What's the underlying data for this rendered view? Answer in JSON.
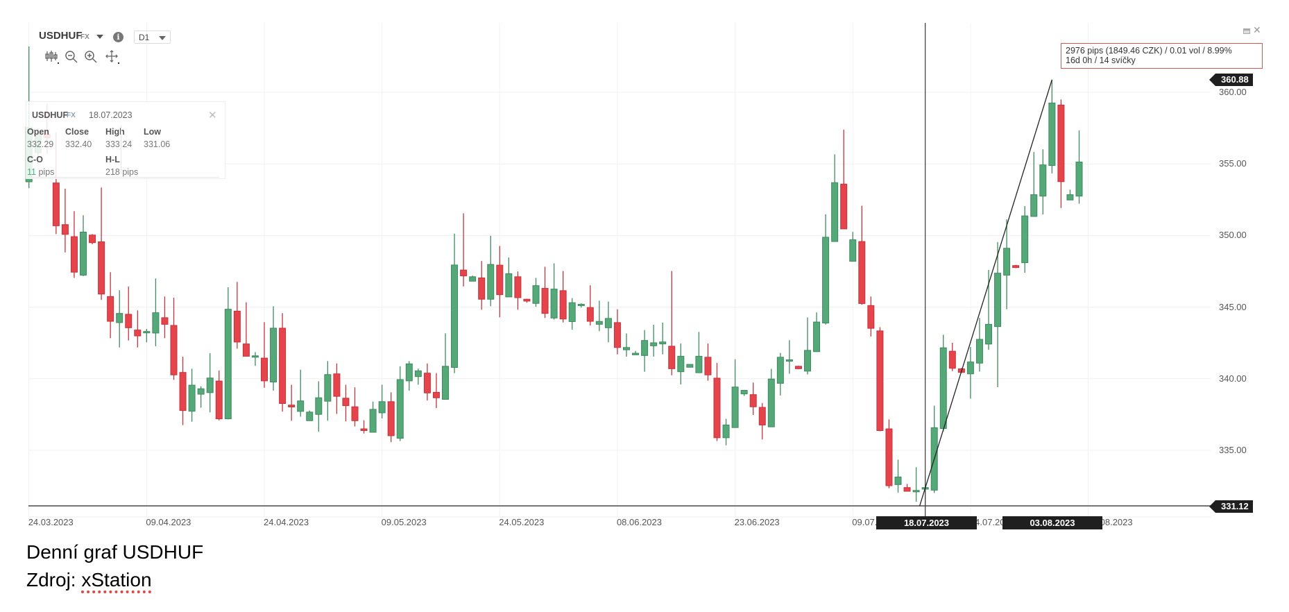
{
  "header": {
    "symbol": "USDHUF",
    "symbol_type": "FX",
    "timeframe": "D1",
    "tools": [
      "candlestick-chart-type-icon",
      "zoom-out-icon",
      "zoom-in-icon",
      "move-icon"
    ]
  },
  "ohlc_panel": {
    "symbol": "USDHUF",
    "symbol_type": "FX",
    "date": "18.07.2023",
    "open_label": "Open",
    "open": "332.29",
    "close_label": "Close",
    "close": "332.40",
    "high_label": "High",
    "high": "333.24",
    "low_label": "Low",
    "low": "331.06",
    "co_label": "C-O",
    "co_value": "11",
    "co_unit": "pips",
    "hl_label": "H-L",
    "hl": "218 pips"
  },
  "measurement": {
    "line1": "2976 pips (1849.46 CZK) / 0.01 vol / 8.99%",
    "line2": "16d 0h / 14 svíčky"
  },
  "price_tags": {
    "high": "360.88",
    "low": "331.12"
  },
  "crosshair_date_labels": {
    "start": "18.07.2023",
    "end": "03.08.2023"
  },
  "caption": {
    "line1": "Denní graf USDHUF",
    "line2_prefix": "Zdroj: ",
    "line2_source": "xStation"
  },
  "colors": {
    "up": "#55a878",
    "up_border": "#3f8a5f",
    "down": "#e5444c",
    "down_border": "#c4343b",
    "measure_border": "#d9534f"
  },
  "chart_data": {
    "type": "candlestick",
    "title": "",
    "ylim": [
      329.5,
      365
    ],
    "grid": true,
    "y_ticks": [
      "360.00",
      "355.00",
      "350.00",
      "345.00",
      "340.00",
      "335.00"
    ],
    "x_ticks": [
      {
        "label": "24.03.2023",
        "bar": 0
      },
      {
        "label": "09.04.2023",
        "bar": 13
      },
      {
        "label": "24.04.2023",
        "bar": 26
      },
      {
        "label": "09.05.2023",
        "bar": 39
      },
      {
        "label": "24.05.2023",
        "bar": 52
      },
      {
        "label": "08.06.2023",
        "bar": 65
      },
      {
        "label": "23.06.2023",
        "bar": 78
      },
      {
        "label": "09.07.2023",
        "bar": 91
      },
      {
        "label": "24.07.2023",
        "bar": 104
      },
      {
        "label": "08.08.2023",
        "bar": 117
      }
    ],
    "ohlc_fields": [
      "open",
      "high",
      "low",
      "close"
    ],
    "candles": [
      [
        353.75,
        363.2,
        353.3,
        357.56
      ],
      [
        355.78,
        357.5,
        355.0,
        357.07
      ],
      [
        357.07,
        359.2,
        355.7,
        356.83
      ],
      [
        353.67,
        357.2,
        350.1,
        350.68
      ],
      [
        350.76,
        353.27,
        348.82,
        350.08
      ],
      [
        349.92,
        351.7,
        347.04,
        347.44
      ],
      [
        347.23,
        351.41,
        347.17,
        350.24
      ],
      [
        350.03,
        350.1,
        349.39,
        349.5
      ],
      [
        349.56,
        353.35,
        345.5,
        345.91
      ],
      [
        345.74,
        347.44,
        342.83,
        344.01
      ],
      [
        343.92,
        346.18,
        342.18,
        344.56
      ],
      [
        344.5,
        346.44,
        342.67,
        343.56
      ],
      [
        343.4,
        344.77,
        342.18,
        342.99
      ],
      [
        343.2,
        343.48,
        342.54,
        343.3
      ],
      [
        343.19,
        347.0,
        342.27,
        344.61
      ],
      [
        344.26,
        345.74,
        342.83,
        343.8
      ],
      [
        343.72,
        345.66,
        339.92,
        340.27
      ],
      [
        340.44,
        341.54,
        336.76,
        337.78
      ],
      [
        337.73,
        340.7,
        337.0,
        339.55
      ],
      [
        338.92,
        339.47,
        337.98,
        339.3
      ],
      [
        339.03,
        341.78,
        337.65,
        340.05
      ],
      [
        339.84,
        340.57,
        337.09,
        337.2
      ],
      [
        337.2,
        346.39,
        337.17,
        344.85
      ],
      [
        344.72,
        346.76,
        342.1,
        342.56
      ],
      [
        342.43,
        345.34,
        341.54,
        341.57
      ],
      [
        341.55,
        341.86,
        340.9,
        341.6
      ],
      [
        341.44,
        343.95,
        339.37,
        339.85
      ],
      [
        339.77,
        345.06,
        339.17,
        343.53
      ],
      [
        343.53,
        344.58,
        337.7,
        338.27
      ],
      [
        338.16,
        339.58,
        337.06,
        338.03
      ],
      [
        337.72,
        340.63,
        337.35,
        338.45
      ],
      [
        337.07,
        337.78,
        337.07,
        337.67
      ],
      [
        337.51,
        339.82,
        336.3,
        338.67
      ],
      [
        338.43,
        341.23,
        337.07,
        340.29
      ],
      [
        340.34,
        341.07,
        337.54,
        338.77
      ],
      [
        338.64,
        339.58,
        337.02,
        338.12
      ],
      [
        338.04,
        339.4,
        336.67,
        337.07
      ],
      [
        336.5,
        337.1,
        336.18,
        336.38
      ],
      [
        336.26,
        338.4,
        336.26,
        337.86
      ],
      [
        337.62,
        339.58,
        337.23,
        338.4
      ],
      [
        338.4,
        339.05,
        335.57,
        336.02
      ],
      [
        335.84,
        340.87,
        335.65,
        339.94
      ],
      [
        339.85,
        341.23,
        339.17,
        341.04
      ],
      [
        340.15,
        340.71,
        339.58,
        340.55
      ],
      [
        340.39,
        341.07,
        338.48,
        339.01
      ],
      [
        339.05,
        340.39,
        337.94,
        338.67
      ],
      [
        338.56,
        343.17,
        338.56,
        340.87
      ],
      [
        340.79,
        350.13,
        340.39,
        347.94
      ],
      [
        347.59,
        351.55,
        346.44,
        347.18
      ],
      [
        346.81,
        347.2,
        346.8,
        347.12
      ],
      [
        347.04,
        348.22,
        344.82,
        345.55
      ],
      [
        345.55,
        349.98,
        345.06,
        347.98
      ],
      [
        347.93,
        349.27,
        344.29,
        345.87
      ],
      [
        345.71,
        348.46,
        345.71,
        347.33
      ],
      [
        347.12,
        347.49,
        344.82,
        345.66
      ],
      [
        345.55,
        345.58,
        345.31,
        345.42
      ],
      [
        345.26,
        347.04,
        345.02,
        346.5
      ],
      [
        346.31,
        347.82,
        344.24,
        344.56
      ],
      [
        344.24,
        348.06,
        344.13,
        346.26
      ],
      [
        346.15,
        347.52,
        343.93,
        344.17
      ],
      [
        343.99,
        345.63,
        343.43,
        345.31
      ],
      [
        345.1,
        345.26,
        344.97,
        345.2
      ],
      [
        344.97,
        346.52,
        343.72,
        344.01
      ],
      [
        343.8,
        345.45,
        343.32,
        344.0
      ],
      [
        343.56,
        345.39,
        342.54,
        344.21
      ],
      [
        343.92,
        344.85,
        341.7,
        342.18
      ],
      [
        342.02,
        343.16,
        341.54,
        342.18
      ],
      [
        341.67,
        341.94,
        341.67,
        341.78
      ],
      [
        341.62,
        343.4,
        340.49,
        342.67
      ],
      [
        342.3,
        343.77,
        341.54,
        342.51
      ],
      [
        342.43,
        343.92,
        341.7,
        342.57
      ],
      [
        342.27,
        347.52,
        340.24,
        340.7
      ],
      [
        340.49,
        342.46,
        339.6,
        341.57
      ],
      [
        340.8,
        341.0,
        340.8,
        341.0
      ],
      [
        340.42,
        343.27,
        340.42,
        341.57
      ],
      [
        341.5,
        342.46,
        339.86,
        340.27
      ],
      [
        340.04,
        341.1,
        335.65,
        335.88
      ],
      [
        335.88,
        337.2,
        335.35,
        336.77
      ],
      [
        336.59,
        341.36,
        336.59,
        339.42
      ],
      [
        338.94,
        339.19,
        338.8,
        339.19
      ],
      [
        338.89,
        339.73,
        337.47,
        338.04
      ],
      [
        338.0,
        338.3,
        335.76,
        336.77
      ],
      [
        336.64,
        340.69,
        336.64,
        339.98
      ],
      [
        339.68,
        341.8,
        338.83,
        341.5
      ],
      [
        341.22,
        342.69,
        340.35,
        341.32
      ],
      [
        340.87,
        340.9,
        340.66,
        340.7
      ],
      [
        340.53,
        344.28,
        340.3,
        341.98
      ],
      [
        341.89,
        344.63,
        341.89,
        343.96
      ],
      [
        343.89,
        351.48,
        343.78,
        349.88
      ],
      [
        349.58,
        355.67,
        349.58,
        353.69
      ],
      [
        353.59,
        357.39,
        350.46,
        350.46
      ],
      [
        348.2,
        350.25,
        348.2,
        349.7
      ],
      [
        349.58,
        352.08,
        345.16,
        345.25
      ],
      [
        345.11,
        345.74,
        342.95,
        343.52
      ],
      [
        343.34,
        343.6,
        336.33,
        336.38
      ],
      [
        336.5,
        337.16,
        332.35,
        332.53
      ],
      [
        332.61,
        334.35,
        332.05,
        333.14
      ],
      [
        332.4,
        332.65,
        332.14,
        332.14
      ],
      [
        332.1,
        333.82,
        331.41,
        332.2
      ],
      [
        332.29,
        333.24,
        331.06,
        332.4
      ],
      [
        332.22,
        338.12,
        332.02,
        336.58
      ],
      [
        336.52,
        343.07,
        336.32,
        342.16
      ],
      [
        341.92,
        342.51,
        340.53,
        340.73
      ],
      [
        340.69,
        340.75,
        340.4,
        340.44
      ],
      [
        340.34,
        342.22,
        338.61,
        341.17
      ],
      [
        341.09,
        344.24,
        340.5,
        342.75
      ],
      [
        342.42,
        347.6,
        342.02,
        343.8
      ],
      [
        343.64,
        349.54,
        339.41,
        347.37
      ],
      [
        347.23,
        351.13,
        344.85,
        349.11
      ],
      [
        347.9,
        347.95,
        347.72,
        347.76
      ],
      [
        348.1,
        352.06,
        347.4,
        351.37
      ],
      [
        351.33,
        355.84,
        351.33,
        352.85
      ],
      [
        352.75,
        356.02,
        351.47,
        354.93
      ],
      [
        354.89,
        360.88,
        354.34,
        359.25
      ],
      [
        359.11,
        359.5,
        351.92,
        353.76
      ],
      [
        352.48,
        353.2,
        352.48,
        352.85
      ],
      [
        352.75,
        357.33,
        352.22,
        355.13
      ]
    ],
    "crosshair_bar": 99,
    "measure_line": {
      "from_bar": 99,
      "from_price": 331.12,
      "to_bar": 113,
      "to_price": 360.88
    },
    "horizontal_line": 331.12
  }
}
